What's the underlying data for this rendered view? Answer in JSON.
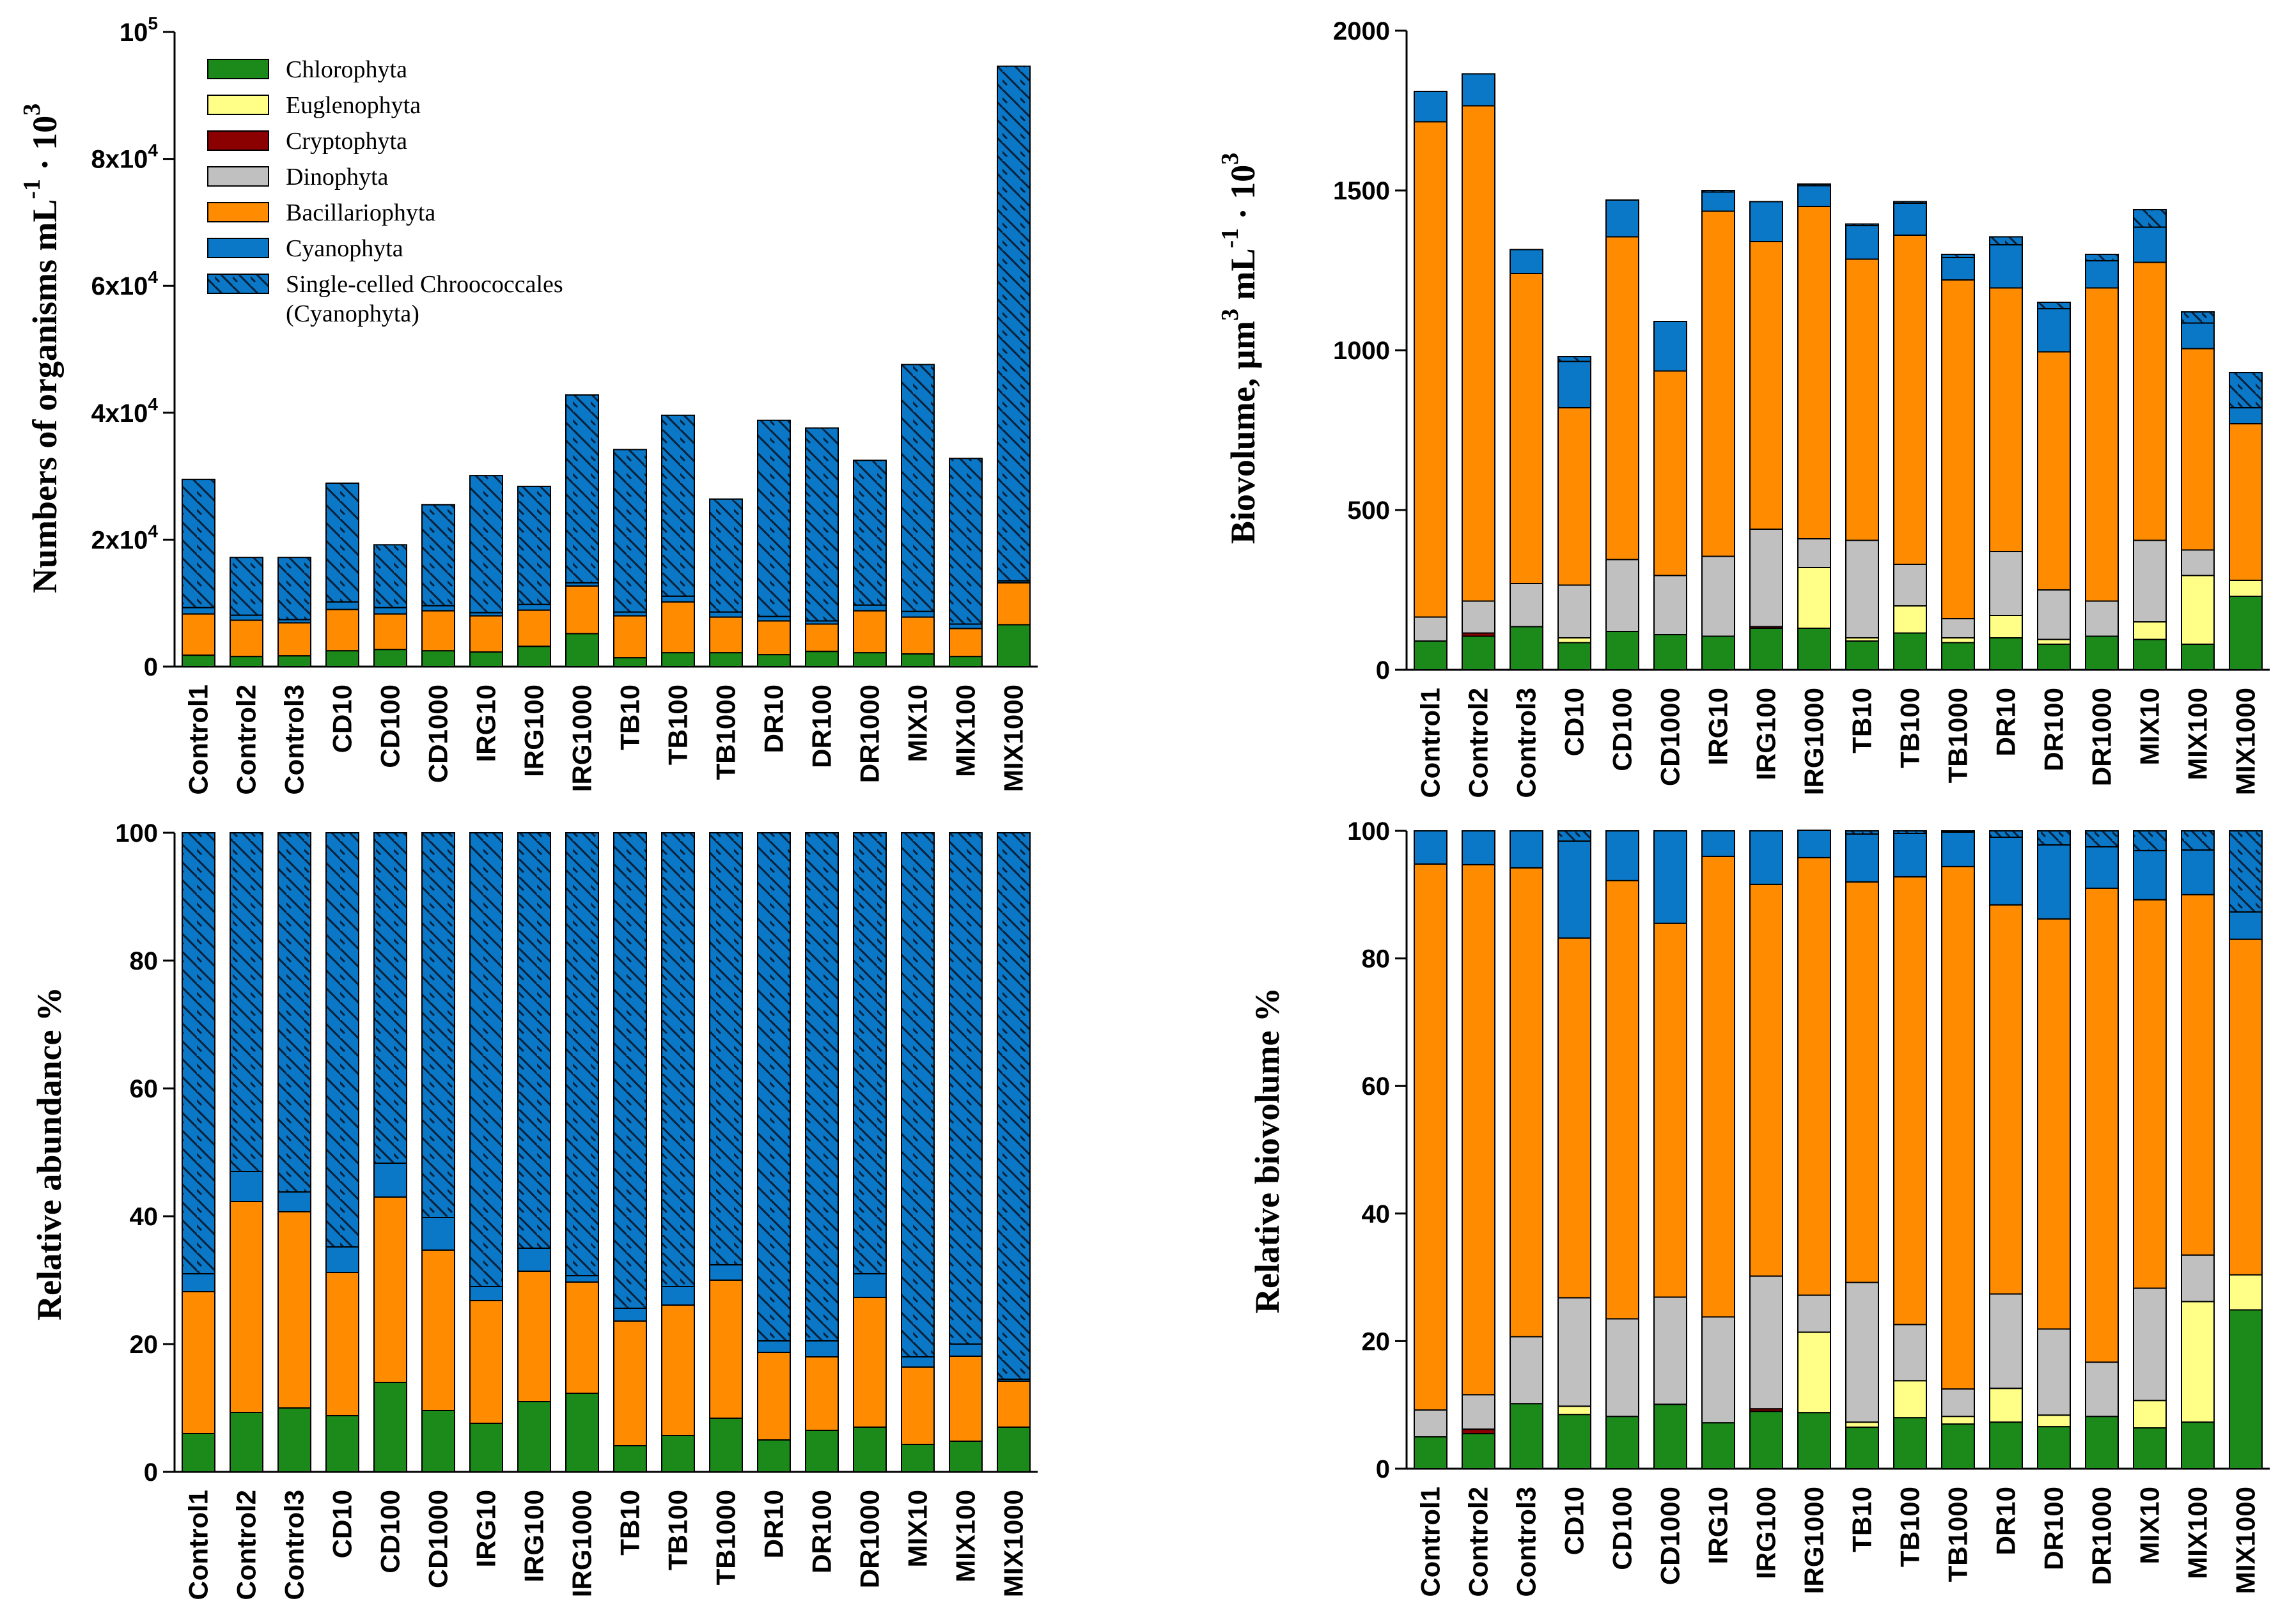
{
  "colors": {
    "Chlorophyta": "#1b8a1b",
    "Euglenophyta": "#ffff88",
    "Cryptophyta": "#8b0000",
    "Dinophyta": "#c0c0c0",
    "Bacillariophyta": "#ff8c00",
    "Cyanophyta": "#0a77c7",
    "Chroococcales": "#0a77c7"
  },
  "legend": {
    "items": [
      {
        "key": "Chlorophyta",
        "label": "Chlorophyta",
        "hatch": false
      },
      {
        "key": "Euglenophyta",
        "label": "Euglenophyta",
        "hatch": false
      },
      {
        "key": "Cryptophyta",
        "label": "Cryptophyta",
        "hatch": false
      },
      {
        "key": "Dinophyta",
        "label": "Dinophyta",
        "hatch": false
      },
      {
        "key": "Bacillariophyta",
        "label": "Bacillariophyta",
        "hatch": false
      },
      {
        "key": "Cyanophyta",
        "label": "Cyanophyta",
        "hatch": false
      },
      {
        "key": "Chroococcales",
        "label": "Single-celled Chroococcales",
        "label2": "(Cyanophyta)",
        "hatch": true
      }
    ]
  },
  "chart_data": [
    {
      "id": "abundance",
      "type": "bar",
      "stacked": true,
      "title_parts": [
        "Numbers of organisms mL",
        "-1",
        " · 10",
        "3"
      ],
      "ylim": [
        0,
        100000
      ],
      "yticks": [
        {
          "value": 0,
          "base": "0",
          "sup": ""
        },
        {
          "value": 20000,
          "base": "2x10",
          "sup": "4"
        },
        {
          "value": 40000,
          "base": "4x10",
          "sup": "4"
        },
        {
          "value": 60000,
          "base": "6x10",
          "sup": "4"
        },
        {
          "value": 80000,
          "base": "8x10",
          "sup": "4"
        },
        {
          "value": 100000,
          "base": "10",
          "sup": "5"
        }
      ],
      "categories": [
        "Control1",
        "Control2",
        "Control3",
        "CD10",
        "CD100",
        "CD1000",
        "IRG10",
        "IRG100",
        "IRG1000",
        "TB10",
        "TB100",
        "TB1000",
        "DR10",
        "DR100",
        "DR1000",
        "MIX10",
        "MIX100",
        "MIX1000"
      ],
      "series": [
        {
          "name": "Chlorophyta",
          "values": [
            1800,
            1600,
            1700,
            2500,
            2700,
            2500,
            2300,
            3200,
            5200,
            1400,
            2200,
            2200,
            1900,
            2400,
            2200,
            2000,
            1600,
            6600
          ]
        },
        {
          "name": "Euglenophyta",
          "values": [
            0,
            0,
            0,
            0,
            0,
            0,
            0,
            0,
            0,
            0,
            0,
            0,
            0,
            0,
            0,
            0,
            0,
            0
          ]
        },
        {
          "name": "Cryptophyta",
          "values": [
            0,
            0,
            0,
            0,
            0,
            0,
            0,
            0,
            0,
            0,
            0,
            0,
            0,
            0,
            0,
            0,
            0,
            0
          ]
        },
        {
          "name": "Dinophyta",
          "values": [
            0,
            0,
            0,
            0,
            0,
            0,
            0,
            0,
            0,
            0,
            0,
            0,
            0,
            0,
            0,
            0,
            0,
            0
          ]
        },
        {
          "name": "Bacillariophyta",
          "values": [
            6500,
            5700,
            5200,
            6500,
            5600,
            6300,
            5700,
            5700,
            7500,
            6600,
            8000,
            5600,
            5300,
            4300,
            6600,
            5800,
            4400,
            6600
          ]
        },
        {
          "name": "Cyanophyta",
          "values": [
            1000,
            800,
            500,
            1200,
            1000,
            800,
            500,
            900,
            500,
            600,
            900,
            800,
            700,
            500,
            900,
            900,
            700,
            300
          ]
        },
        {
          "name": "Chroococcales",
          "values": [
            20200,
            9100,
            9800,
            18700,
            9900,
            15900,
            21600,
            18600,
            29600,
            25600,
            28500,
            17800,
            30900,
            30400,
            22800,
            38900,
            26100,
            81100
          ]
        }
      ]
    },
    {
      "id": "biovolume",
      "type": "bar",
      "stacked": true,
      "title_parts": [
        "Biovolume, µm",
        "3",
        " mL",
        "-1",
        " · 10",
        "3"
      ],
      "ylim": [
        0,
        2000
      ],
      "yticks": [
        {
          "value": 0,
          "base": "0",
          "sup": ""
        },
        {
          "value": 500,
          "base": "500",
          "sup": ""
        },
        {
          "value": 1000,
          "base": "1000",
          "sup": ""
        },
        {
          "value": 1500,
          "base": "1500",
          "sup": ""
        },
        {
          "value": 2000,
          "base": "2000",
          "sup": ""
        }
      ],
      "categories": [
        "Control1",
        "Control2",
        "Control3",
        "CD10",
        "CD100",
        "CD1000",
        "IRG10",
        "IRG100",
        "IRG1000",
        "TB10",
        "TB100",
        "TB1000",
        "DR10",
        "DR100",
        "DR1000",
        "MIX10",
        "MIX100",
        "MIX1000"
      ],
      "series": [
        {
          "name": "Chlorophyta",
          "values": [
            90,
            105,
            135,
            85,
            120,
            110,
            105,
            130,
            130,
            90,
            115,
            85,
            100,
            80,
            105,
            95,
            80,
            230
          ]
        },
        {
          "name": "Euglenophyta",
          "values": [
            0,
            0,
            0,
            15,
            0,
            0,
            0,
            0,
            190,
            10,
            85,
            15,
            70,
            15,
            0,
            55,
            215,
            50
          ]
        },
        {
          "name": "Cryptophyta",
          "values": [
            0,
            10,
            0,
            0,
            0,
            0,
            0,
            5,
            0,
            0,
            0,
            0,
            0,
            0,
            0,
            0,
            0,
            0
          ]
        },
        {
          "name": "Dinophyta",
          "values": [
            75,
            100,
            135,
            165,
            225,
            185,
            250,
            305,
            90,
            305,
            130,
            60,
            200,
            155,
            110,
            255,
            80,
            0
          ]
        },
        {
          "name": "Bacillariophyta",
          "values": [
            1550,
            1550,
            970,
            555,
            1010,
            640,
            1080,
            900,
            1040,
            880,
            1030,
            1060,
            825,
            745,
            980,
            870,
            630,
            490
          ]
        },
        {
          "name": "Cyanophyta",
          "values": [
            95,
            100,
            75,
            145,
            115,
            155,
            60,
            125,
            65,
            105,
            100,
            70,
            135,
            135,
            85,
            110,
            80,
            50
          ]
        },
        {
          "name": "Chroococcales",
          "values": [
            0,
            0,
            0,
            15,
            0,
            0,
            5,
            0,
            5,
            5,
            5,
            10,
            25,
            20,
            20,
            55,
            35,
            110
          ]
        }
      ]
    },
    {
      "id": "rel_abundance",
      "type": "bar",
      "stacked": true,
      "title_parts": [
        "Relative abundance %"
      ],
      "ylim": [
        0,
        100
      ],
      "yticks": [
        {
          "value": 0,
          "base": "0",
          "sup": ""
        },
        {
          "value": 20,
          "base": "20",
          "sup": ""
        },
        {
          "value": 40,
          "base": "40",
          "sup": ""
        },
        {
          "value": 60,
          "base": "60",
          "sup": ""
        },
        {
          "value": 80,
          "base": "80",
          "sup": ""
        },
        {
          "value": 100,
          "base": "100",
          "sup": ""
        }
      ],
      "categories": [
        "Control1",
        "Control2",
        "Control3",
        "CD10",
        "CD100",
        "CD1000",
        "IRG10",
        "IRG100",
        "IRG1000",
        "TB10",
        "TB100",
        "TB1000",
        "DR10",
        "DR100",
        "DR1000",
        "MIX10",
        "MIX100",
        "MIX1000"
      ],
      "series": [
        {
          "name": "Chlorophyta",
          "values": [
            6,
            9.3,
            10,
            8.8,
            14,
            9.6,
            7.6,
            11,
            12.3,
            4.1,
            5.7,
            8.4,
            5,
            6.5,
            7,
            4.3,
            4.8,
            7
          ]
        },
        {
          "name": "Euglenophyta",
          "values": [
            0,
            0,
            0,
            0,
            0,
            0,
            0,
            0,
            0,
            0,
            0,
            0,
            0,
            0,
            0,
            0,
            0,
            0
          ]
        },
        {
          "name": "Cryptophyta",
          "values": [
            0,
            0,
            0,
            0,
            0,
            0,
            0,
            0,
            0,
            0,
            0,
            0,
            0,
            0,
            0,
            0,
            0,
            0
          ]
        },
        {
          "name": "Dinophyta",
          "values": [
            0,
            0,
            0,
            0,
            0,
            0,
            0,
            0,
            0,
            0,
            0,
            0,
            0,
            0,
            0,
            0,
            0,
            0
          ]
        },
        {
          "name": "Bacillariophyta",
          "values": [
            22.2,
            33,
            30.7,
            22.4,
            29,
            25.1,
            19.2,
            20.4,
            17.4,
            19.5,
            20.4,
            21.6,
            13.7,
            11.5,
            20.3,
            12.1,
            13.3,
            7.2
          ]
        },
        {
          "name": "Cyanophyta",
          "values": [
            2.8,
            4.7,
            3.1,
            4,
            5.3,
            5.1,
            2.2,
            3.6,
            1,
            2,
            2.9,
            2.4,
            1.8,
            2.5,
            3.7,
            1.6,
            1.9,
            0.3
          ]
        },
        {
          "name": "Chroococcales",
          "values": [
            69,
            53,
            56.2,
            64.8,
            51.7,
            60.2,
            71,
            65,
            69.3,
            74.4,
            71,
            67.6,
            79.5,
            79.5,
            69,
            82,
            80,
            85.5
          ]
        }
      ]
    },
    {
      "id": "rel_biovolume",
      "type": "bar",
      "stacked": true,
      "title_parts": [
        "Relative biovolume %"
      ],
      "ylim": [
        0,
        100
      ],
      "yticks": [
        {
          "value": 0,
          "base": "0",
          "sup": ""
        },
        {
          "value": 20,
          "base": "20",
          "sup": ""
        },
        {
          "value": 40,
          "base": "40",
          "sup": ""
        },
        {
          "value": 60,
          "base": "60",
          "sup": ""
        },
        {
          "value": 80,
          "base": "80",
          "sup": ""
        },
        {
          "value": 100,
          "base": "100",
          "sup": ""
        }
      ],
      "categories": [
        "Control1",
        "Control2",
        "Control3",
        "CD10",
        "CD100",
        "CD1000",
        "IRG10",
        "IRG100",
        "IRG1000",
        "TB10",
        "TB100",
        "TB1000",
        "DR10",
        "DR100",
        "DR1000",
        "MIX10",
        "MIX100",
        "MIX1000"
      ],
      "series": [
        {
          "name": "Chlorophyta",
          "values": [
            5,
            5.5,
            10.2,
            8.5,
            8.2,
            10.1,
            7.2,
            9,
            8.8,
            6.5,
            8,
            7,
            7.3,
            6.6,
            8.2,
            6.4,
            7.3,
            24.9
          ]
        },
        {
          "name": "Euglenophyta",
          "values": [
            0,
            0,
            0,
            1.3,
            0,
            0,
            0,
            0,
            12.6,
            0.8,
            5.8,
            1.2,
            5.3,
            1.8,
            0,
            4.3,
            18.9,
            5.5
          ]
        },
        {
          "name": "Cryptophyta",
          "values": [
            0,
            0.7,
            0,
            0,
            0,
            0,
            0,
            0.4,
            0,
            0,
            0,
            0,
            0,
            0,
            0,
            0,
            0,
            0
          ]
        },
        {
          "name": "Dinophyta",
          "values": [
            4.2,
            5.4,
            10.5,
            17,
            15.3,
            16.8,
            16.6,
            20.8,
            5.8,
            21.9,
            8.8,
            4.3,
            14.8,
            13.5,
            8.5,
            17.6,
            7.3,
            0
          ]
        },
        {
          "name": "Bacillariophyta",
          "values": [
            85.6,
            83.1,
            73.5,
            56.4,
            68.7,
            58.6,
            72.2,
            61.4,
            68.6,
            62.8,
            70.2,
            81.9,
            61,
            64.3,
            74.3,
            60.9,
            56.5,
            52.6
          ]
        },
        {
          "name": "Cyanophyta",
          "values": [
            5.2,
            5.3,
            5.8,
            15.2,
            7.8,
            14.5,
            4,
            8.4,
            4.3,
            7.5,
            6.8,
            5.4,
            10.6,
            11.6,
            6.5,
            7.7,
            7,
            4.3
          ]
        },
        {
          "name": "Chroococcales",
          "values": [
            0,
            0,
            0,
            1.6,
            0,
            0,
            0,
            0,
            0,
            0.5,
            0.4,
            0.2,
            1,
            2.2,
            2.5,
            3.1,
            3,
            12.7
          ]
        }
      ]
    }
  ]
}
